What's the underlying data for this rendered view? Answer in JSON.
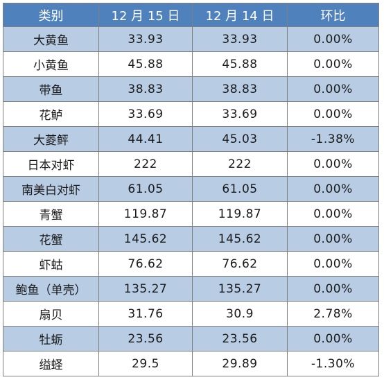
{
  "table": {
    "headers": [
      "类别",
      "12 月 15 日",
      "12 月 14 日",
      "环比"
    ],
    "rows": [
      [
        "大黄鱼",
        "33.93",
        "33.93",
        "0.00%"
      ],
      [
        "小黄鱼",
        "45.88",
        "45.88",
        "0.00%"
      ],
      [
        "带鱼",
        "38.83",
        "38.83",
        "0.00%"
      ],
      [
        "花鲈",
        "33.69",
        "33.69",
        "0.00%"
      ],
      [
        "大菱鲆",
        "44.41",
        "45.03",
        "-1.38%"
      ],
      [
        "日本对虾",
        "222",
        "222",
        "0.00%"
      ],
      [
        "南美白对虾",
        "61.05",
        "61.05",
        "0.00%"
      ],
      [
        "青蟹",
        "119.87",
        "119.87",
        "0.00%"
      ],
      [
        "花蟹",
        "145.62",
        "145.62",
        "0.00%"
      ],
      [
        "虾蛄",
        "76.62",
        "76.62",
        "0.00%"
      ],
      [
        "鲍鱼（单壳）",
        "135.27",
        "135.27",
        "0.00%"
      ],
      [
        "扇贝",
        "31.76",
        "30.9",
        "2.78%"
      ],
      [
        "牡蛎",
        "23.56",
        "23.56",
        "0.00%"
      ],
      [
        "缢蛏",
        "29.5",
        "29.89",
        "-1.30%"
      ]
    ]
  },
  "colors": {
    "header_bg": "#4f81bd",
    "header_text": "#ffffff",
    "band_bg": "#b8cce4",
    "row_bg": "#ffffff",
    "border": "#7f7f7f"
  }
}
